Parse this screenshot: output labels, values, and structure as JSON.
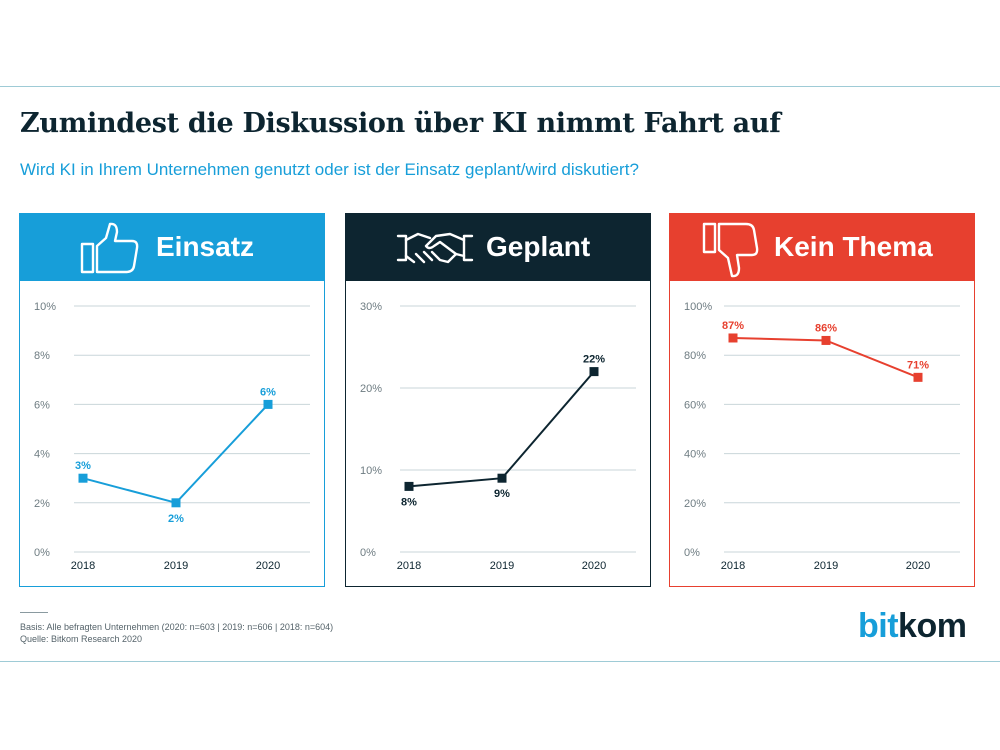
{
  "title": "Zumindest die Diskussion über KI nimmt Fahrt auf",
  "subtitle": "Wird KI in Ihrem Unternehmen genutzt oder ist der Einsatz geplant/wird diskutiert?",
  "colors": {
    "einsatz": "#179ed9",
    "geplant": "#0d2530",
    "kein_thema": "#e7402f",
    "grid": "#c9d6da",
    "tick_text": "#6e7c82"
  },
  "panels": [
    {
      "label": "Einsatz",
      "icon": "thumbs-up-icon",
      "color": "#179ed9"
    },
    {
      "label": "Geplant",
      "icon": "handshake-icon",
      "color": "#0d2530"
    },
    {
      "label": "Kein Thema",
      "icon": "thumbs-down-icon",
      "color": "#e7402f"
    }
  ],
  "chart_data": [
    {
      "type": "line",
      "title": "Einsatz",
      "categories": [
        "2018",
        "2019",
        "2020"
      ],
      "series": [
        {
          "values": [
            3,
            2,
            6
          ]
        }
      ],
      "data_labels": [
        "3%",
        "2%",
        "6%"
      ],
      "ylim": [
        0,
        10
      ],
      "yticks": [
        "0%",
        "2%",
        "4%",
        "6%",
        "8%",
        "10%"
      ],
      "grid": true
    },
    {
      "type": "line",
      "title": "Geplant",
      "categories": [
        "2018",
        "2019",
        "2020"
      ],
      "series": [
        {
          "values": [
            8,
            9,
            22
          ]
        }
      ],
      "data_labels": [
        "8%",
        "9%",
        "22%"
      ],
      "ylim": [
        0,
        30
      ],
      "yticks": [
        "0%",
        "10%",
        "20%",
        "30%"
      ],
      "grid": true
    },
    {
      "type": "line",
      "title": "Kein Thema",
      "categories": [
        "2018",
        "2019",
        "2020"
      ],
      "series": [
        {
          "values": [
            87,
            86,
            71
          ]
        }
      ],
      "data_labels": [
        "87%",
        "86%",
        "71%"
      ],
      "ylim": [
        0,
        100
      ],
      "yticks": [
        "0%",
        "20%",
        "40%",
        "60%",
        "80%",
        "100%"
      ],
      "grid": true
    }
  ],
  "footer": {
    "basis": "Basis: Alle befragten Unternehmen (2020: n=603 | 2019: n=606 | 2018: n=604)",
    "source": "Quelle: Bitkom Research 2020"
  },
  "logo": {
    "part1": "bit",
    "part2": "kom"
  }
}
